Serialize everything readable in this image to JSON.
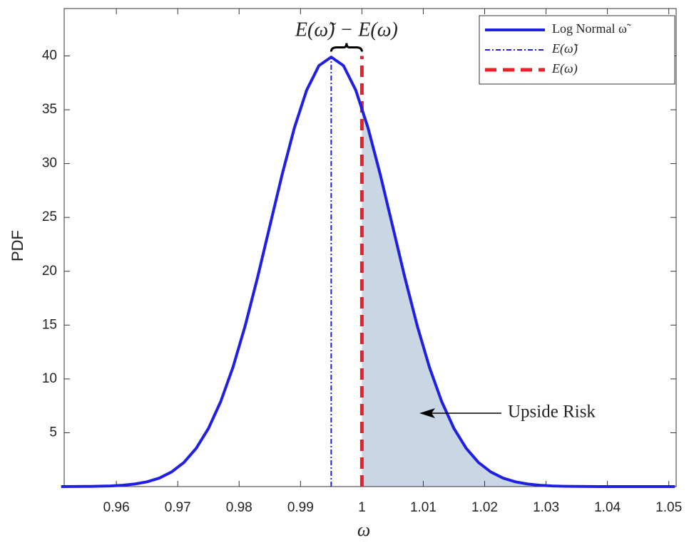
{
  "chart_data": {
    "type": "line",
    "x_label": "ω",
    "y_label": "PDF",
    "x": [
      0.951,
      0.953,
      0.955,
      0.957,
      0.959,
      0.961,
      0.963,
      0.965,
      0.967,
      0.969,
      0.971,
      0.973,
      0.975,
      0.977,
      0.979,
      0.981,
      0.983,
      0.985,
      0.987,
      0.989,
      0.991,
      0.993,
      0.995,
      0.997,
      0.999,
      1.001,
      1.003,
      1.005,
      1.007,
      1.009,
      1.011,
      1.013,
      1.015,
      1.017,
      1.019,
      1.021,
      1.023,
      1.025,
      1.027,
      1.029,
      1.031,
      1.033,
      1.035,
      1.037,
      1.039,
      1.041,
      1.043,
      1.045,
      1.047,
      1.049,
      1.051
    ],
    "series": [
      {
        "name": "Log Normal ω̃",
        "color": "#1f1fe6",
        "values": [
          0.0025,
          0.0059,
          0.0134,
          0.029,
          0.061,
          0.123,
          0.238,
          0.443,
          0.792,
          1.36,
          2.24,
          3.55,
          5.4,
          7.9,
          11.09,
          14.97,
          19.42,
          24.2,
          28.97,
          33.32,
          36.82,
          39.1,
          39.89,
          39.1,
          36.82,
          33.32,
          28.97,
          24.2,
          19.42,
          14.97,
          11.09,
          7.9,
          5.4,
          3.55,
          2.24,
          1.36,
          0.792,
          0.443,
          0.238,
          0.123,
          0.061,
          0.029,
          0.0134,
          0.0059,
          0.0025,
          0.001,
          0.0004,
          0.0001,
          0.0001,
          0.0,
          0.0
        ]
      }
    ],
    "vlines": [
      {
        "name": "E(ω̃)",
        "x": 0.995,
        "color": "#2020e0",
        "style": "dashdot"
      },
      {
        "name": "E(ω)",
        "x": 1,
        "color": "#e8202a",
        "style": "dashed"
      }
    ],
    "shade_color": "#c9d6e3",
    "annotations": [
      "E(ω̃) − E(ω)",
      "Upside Risk"
    ],
    "xlim": [
      0.9515,
      1.0512
    ],
    "ylim": [
      0,
      44.4
    ],
    "xticks": [
      0.96,
      0.97,
      0.98,
      0.99,
      1,
      1.01,
      1.02,
      1.03,
      1.04,
      1.05
    ],
    "yticks": [
      5,
      10,
      15,
      20,
      25,
      30,
      35,
      40
    ],
    "legend": "upper right",
    "grid": false
  }
}
